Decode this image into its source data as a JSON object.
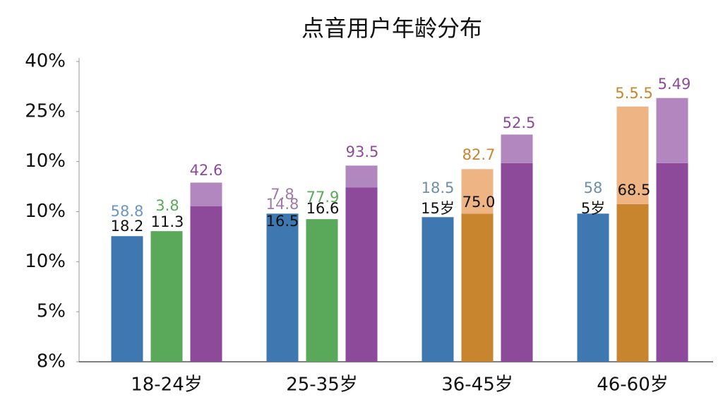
{
  "chart_data": {
    "type": "bar",
    "title": "点音用户年龄分布",
    "categories": [
      "18-24岁",
      "25-35岁",
      "36-45岁",
      "46-60岁"
    ],
    "ylim": [
      0,
      6
    ],
    "yticks": [
      {
        "value": 0,
        "label": "8%"
      },
      {
        "value": 1,
        "label": "5%"
      },
      {
        "value": 2,
        "label": "10%"
      },
      {
        "value": 3,
        "label": "10%"
      },
      {
        "value": 4,
        "label": "10%"
      },
      {
        "value": 5,
        "label": "25%"
      },
      {
        "value": 6,
        "label": "40%"
      }
    ],
    "series": [
      {
        "slot": 0,
        "colors": [
          "#3f78b0",
          "#3f78b0",
          "#3f78b0",
          "#3f78b0"
        ],
        "values": [
          2.51,
          2.96,
          2.89,
          2.96
        ]
      },
      {
        "slot": 1,
        "colors": [
          "#5aa95a",
          "#5aa95a",
          "#c8852e",
          "#c8852e"
        ],
        "values": [
          2.61,
          2.85,
          2.96,
          3.15
        ]
      },
      {
        "slot": 1,
        "stacked": true,
        "colors": [
          "#efb483",
          "#efb483",
          "#efb483",
          "#efb483"
        ],
        "values": [
          null,
          null,
          0.89,
          1.95
        ]
      },
      {
        "slot": 2,
        "colors": [
          "#8e4a9a",
          "#8e4a9a",
          "#8e4a9a",
          "#8e4a9a"
        ],
        "values": [
          3.11,
          3.48,
          3.97,
          3.97
        ]
      },
      {
        "slot": 2,
        "stacked": true,
        "colors": [
          "#b287bf",
          "#b287bf",
          "#b287bf",
          "#b287bf"
        ],
        "values": [
          0.47,
          0.44,
          0.57,
          1.3
        ]
      }
    ],
    "annotations": [
      {
        "text": "58.8",
        "color": "#6e95bf"
      },
      {
        "text": "18.2",
        "color": "#111111"
      },
      {
        "text": "3.8",
        "color": "#5aa95a"
      },
      {
        "text": "11.3",
        "color": "#111111"
      },
      {
        "text": "42.6",
        "color": "#8e4a9a"
      },
      {
        "text": "7.8",
        "color": "#a07aa8"
      },
      {
        "text": "14.8",
        "color": "#a07aa8"
      },
      {
        "text": "16.5",
        "color": "#111111"
      },
      {
        "text": "77.9",
        "color": "#5aa95a"
      },
      {
        "text": "16.6",
        "color": "#111111"
      },
      {
        "text": "93.5",
        "color": "#8e4a9a"
      },
      {
        "text": "18.5",
        "color": "#6d8faa"
      },
      {
        "text": "15岁",
        "color": "#111111"
      },
      {
        "text": "82.7",
        "color": "#c8852e"
      },
      {
        "text": "75.0",
        "color": "#111111"
      },
      {
        "text": "52.5",
        "color": "#8e4a9a"
      },
      {
        "text": "58",
        "color": "#6d8faa"
      },
      {
        "text": "5岁",
        "color": "#111111"
      },
      {
        "text": "5.5.5",
        "color": "#c8852e"
      },
      {
        "text": "68.5",
        "color": "#111111"
      },
      {
        "text": "5.49",
        "color": "#8e4a9a"
      }
    ]
  }
}
